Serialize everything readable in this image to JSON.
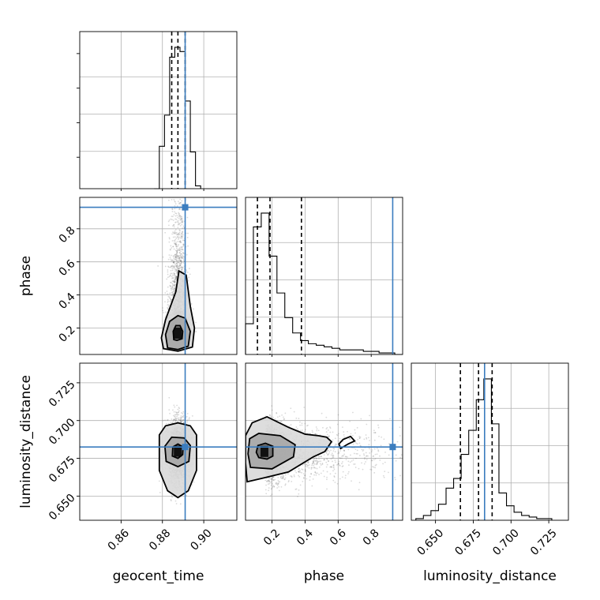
{
  "chart_data": {
    "type": "corner",
    "parameters": [
      "geocent_time",
      "phase",
      "luminosity_distance"
    ],
    "axes": {
      "geocent_time": {
        "label": "geocent_time",
        "range": [
          0.84,
          0.916
        ],
        "ticks": [
          0.86,
          0.88,
          0.9
        ],
        "tick_labels": [
          "0.86",
          "0.88",
          "0.90"
        ]
      },
      "phase": {
        "label": "phase",
        "range": [
          0.04,
          0.99
        ],
        "ticks": [
          0.2,
          0.4,
          0.6,
          0.8
        ],
        "tick_labels": [
          "0.2",
          "0.4",
          "0.6",
          "0.8"
        ]
      },
      "luminosity_distance": {
        "label": "luminosity_distance",
        "range": [
          0.634,
          0.738
        ],
        "ticks": [
          0.65,
          0.675,
          0.7,
          0.725
        ],
        "tick_labels": [
          "0.650",
          "0.675",
          "0.700",
          "0.725"
        ]
      }
    },
    "truths": {
      "geocent_time": 0.891,
      "phase": 0.93,
      "luminosity_distance": 0.6825
    },
    "quantiles": {
      "geocent_time": [
        0.8845,
        0.8875,
        0.891
      ],
      "phase": [
        0.112,
        0.188,
        0.378
      ],
      "luminosity_distance": [
        0.6665,
        0.6785,
        0.6875
      ]
    },
    "histograms": {
      "geocent_time": {
        "bin_edges": [
          0.876,
          0.8785,
          0.881,
          0.8835,
          0.886,
          0.8885,
          0.891,
          0.8935,
          0.896,
          0.8985
        ],
        "counts": [
          0,
          30,
          52,
          93,
          100,
          97,
          62,
          26,
          2
        ]
      },
      "phase": {
        "bin_edges": [
          0.04,
          0.0875,
          0.135,
          0.1825,
          0.23,
          0.2775,
          0.325,
          0.3725,
          0.42,
          0.4675,
          0.515,
          0.5625,
          0.61,
          0.6575,
          0.705,
          0.7525,
          0.8,
          0.8475,
          0.895,
          0.9425,
          0.99
        ],
        "counts": [
          20,
          83,
          92,
          64,
          40,
          24,
          14,
          9,
          7,
          6,
          5,
          4,
          3,
          3,
          3,
          2,
          2,
          1,
          1,
          0
        ]
      },
      "luminosity_distance": {
        "bin_edges": [
          0.637,
          0.642,
          0.647,
          0.652,
          0.657,
          0.662,
          0.667,
          0.672,
          0.677,
          0.682,
          0.687,
          0.692,
          0.697,
          0.702,
          0.707,
          0.712,
          0.717,
          0.722,
          0.727
        ],
        "counts": [
          1,
          3,
          6,
          10,
          20,
          26,
          41,
          56,
          75,
          88,
          60,
          17,
          9,
          5,
          3,
          2,
          1,
          1
        ]
      }
    },
    "samples_2d": [
      {
        "x": "geocent_time",
        "y": "phase",
        "center": [
          0.8875,
          0.17
        ],
        "spread": [
          0.0023,
          0.18
        ],
        "skew_y": 0.28
      },
      {
        "x": "geocent_time",
        "y": "luminosity_distance",
        "center": [
          0.8875,
          0.6795
        ],
        "spread": [
          0.0028,
          0.0105
        ],
        "skew_y": 0
      },
      {
        "x": "phase",
        "y": "luminosity_distance",
        "center": [
          0.16,
          0.679
        ],
        "spread": [
          0.12,
          0.0095
        ],
        "skew_x": 0.5
      }
    ],
    "contours_2d": [
      {
        "x": "geocent_time",
        "y": "phase",
        "levels": [
          [
            [
              0.8855,
              0.13
            ],
            [
              0.887,
              0.125
            ],
            [
              0.8895,
              0.135
            ],
            [
              0.8898,
              0.18
            ],
            [
              0.8885,
              0.215
            ],
            [
              0.8865,
              0.215
            ],
            [
              0.8852,
              0.18
            ]
          ],
          [
            [
              0.8825,
              0.08
            ],
            [
              0.8875,
              0.07
            ],
            [
              0.8925,
              0.09
            ],
            [
              0.8935,
              0.18
            ],
            [
              0.891,
              0.26
            ],
            [
              0.8875,
              0.275
            ],
            [
              0.8835,
              0.24
            ],
            [
              0.8815,
              0.16
            ]
          ],
          [
            [
              0.8805,
              0.075
            ],
            [
              0.8875,
              0.06
            ],
            [
              0.8945,
              0.085
            ],
            [
              0.8955,
              0.2
            ],
            [
              0.8935,
              0.33
            ],
            [
              0.8915,
              0.52
            ],
            [
              0.888,
              0.545
            ],
            [
              0.8865,
              0.42
            ],
            [
              0.8815,
              0.25
            ],
            [
              0.8795,
              0.14
            ]
          ]
        ]
      },
      {
        "x": "geocent_time",
        "y": "luminosity_distance",
        "levels": [
          [
            [
              0.8848,
              0.6765
            ],
            [
              0.8875,
              0.675
            ],
            [
              0.8898,
              0.6775
            ],
            [
              0.89,
              0.6825
            ],
            [
              0.8875,
              0.6845
            ],
            [
              0.885,
              0.6825
            ]
          ],
          [
            [
              0.8818,
              0.673
            ],
            [
              0.8875,
              0.6695
            ],
            [
              0.8928,
              0.673
            ],
            [
              0.8935,
              0.6835
            ],
            [
              0.8905,
              0.6885
            ],
            [
              0.8845,
              0.689
            ],
            [
              0.8812,
              0.683
            ]
          ],
          [
            [
              0.8785,
              0.667
            ],
            [
              0.8825,
              0.6535
            ],
            [
              0.8875,
              0.649
            ],
            [
              0.8925,
              0.6535
            ],
            [
              0.8965,
              0.667
            ],
            [
              0.8965,
              0.6905
            ],
            [
              0.8935,
              0.6965
            ],
            [
              0.8875,
              0.6985
            ],
            [
              0.8815,
              0.6965
            ],
            [
              0.8785,
              0.6905
            ]
          ]
        ]
      },
      {
        "x": "phase",
        "y": "luminosity_distance",
        "levels": [
          [
            [
              0.12,
              0.6755
            ],
            [
              0.17,
              0.6745
            ],
            [
              0.205,
              0.6765
            ],
            [
              0.205,
              0.683
            ],
            [
              0.16,
              0.685
            ],
            [
              0.115,
              0.6835
            ],
            [
              0.105,
              0.679
            ]
          ],
          [
            [
              0.07,
              0.669
            ],
            [
              0.2,
              0.668
            ],
            [
              0.33,
              0.676
            ],
            [
              0.34,
              0.684
            ],
            [
              0.25,
              0.69
            ],
            [
              0.12,
              0.6915
            ],
            [
              0.065,
              0.688
            ],
            [
              0.055,
              0.678
            ]
          ],
          [
            [
              0.05,
              0.6595
            ],
            [
              0.15,
              0.662
            ],
            [
              0.3,
              0.666
            ],
            [
              0.45,
              0.676
            ],
            [
              0.52,
              0.6795
            ],
            [
              0.56,
              0.686
            ],
            [
              0.53,
              0.689
            ],
            [
              0.48,
              0.69
            ],
            [
              0.4,
              0.691
            ],
            [
              0.3,
              0.6955
            ],
            [
              0.17,
              0.7025
            ],
            [
              0.08,
              0.6985
            ],
            [
              0.04,
              0.69
            ],
            [
              0.04,
              0.672
            ]
          ],
          [
            [
              0.615,
              0.6815
            ],
            [
              0.66,
              0.6845
            ],
            [
              0.7,
              0.6865
            ],
            [
              0.675,
              0.6895
            ],
            [
              0.63,
              0.6875
            ],
            [
              0.605,
              0.6845
            ]
          ]
        ]
      }
    ]
  }
}
